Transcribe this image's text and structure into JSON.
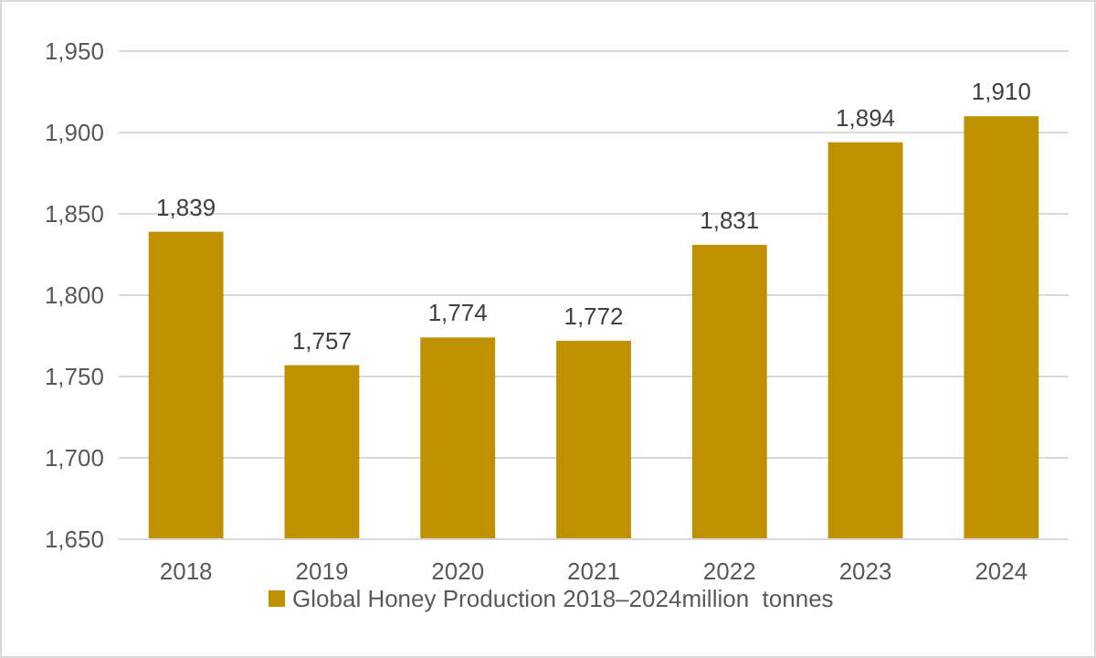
{
  "chart_data": {
    "type": "bar",
    "categories": [
      "2018",
      "2019",
      "2020",
      "2021",
      "2022",
      "2023",
      "2024"
    ],
    "series": [
      {
        "name": "Global Honey Production 2018–2024million  tonnes",
        "color": "#bf9000",
        "values": [
          1839,
          1757,
          1774,
          1772,
          1831,
          1894,
          1910
        ],
        "value_labels": [
          "1,839",
          "1,757",
          "1,774",
          "1,772",
          "1,831",
          "1,894",
          "1,910"
        ]
      }
    ],
    "ylim": [
      1650,
      1950
    ],
    "yticks": [
      {
        "value": 1650,
        "label": "1,650"
      },
      {
        "value": 1700,
        "label": "1,700"
      },
      {
        "value": 1750,
        "label": "1,750"
      },
      {
        "value": 1800,
        "label": "1,800"
      },
      {
        "value": 1850,
        "label": "1,850"
      },
      {
        "value": 1900,
        "label": "1,900"
      },
      {
        "value": 1950,
        "label": "1,950"
      }
    ],
    "grid": "y",
    "legend": "bottom"
  }
}
